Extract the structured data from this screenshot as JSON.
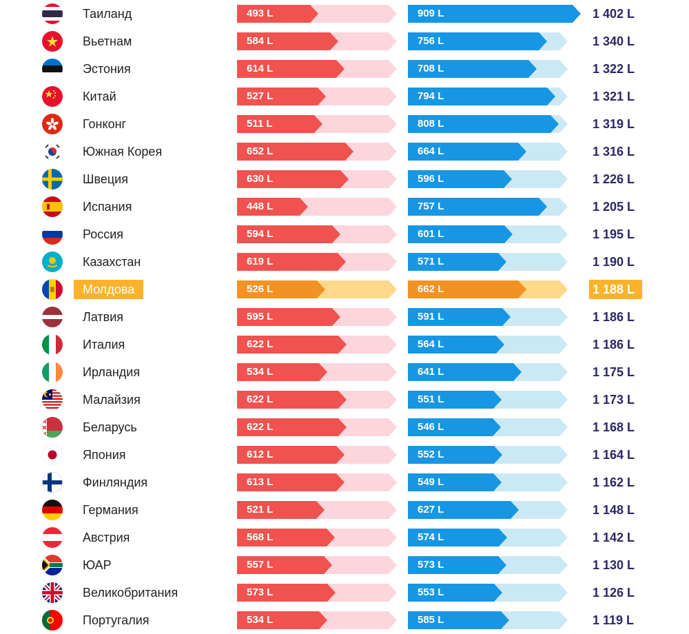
{
  "chart_data": {
    "type": "bar",
    "series": [
      {
        "colors": {
          "bar": "#f0524f",
          "track": "#fdd5dc"
        }
      },
      {
        "colors": {
          "bar": "#1796e3",
          "track": "#cbe9f4"
        }
      }
    ],
    "highlight_colors": {
      "bar": "#f29222",
      "track": "#fed88a",
      "badge": "#fcb22a"
    },
    "total_color": "#2b2669",
    "unit": "L",
    "rows": [
      {
        "country": "Таиланд",
        "flag": "thailand-flag",
        "v1": 493,
        "v1_label": "493 L",
        "v2": 909,
        "v2_label": "909 L",
        "total": 1402,
        "total_label": "1 402 L"
      },
      {
        "country": "Вьетнам",
        "flag": "vietnam-flag",
        "v1": 584,
        "v1_label": "584 L",
        "v2": 756,
        "v2_label": "756 L",
        "total": 1340,
        "total_label": "1 340 L"
      },
      {
        "country": "Эстония",
        "flag": "estonia-flag",
        "v1": 614,
        "v1_label": "614 L",
        "v2": 708,
        "v2_label": "708 L",
        "total": 1322,
        "total_label": "1 322 L"
      },
      {
        "country": "Китай",
        "flag": "china-flag",
        "v1": 527,
        "v1_label": "527 L",
        "v2": 794,
        "v2_label": "794 L",
        "total": 1321,
        "total_label": "1 321 L"
      },
      {
        "country": "Гонконг",
        "flag": "hong-kong-flag",
        "v1": 511,
        "v1_label": "511 L",
        "v2": 808,
        "v2_label": "808 L",
        "total": 1319,
        "total_label": "1 319 L"
      },
      {
        "country": "Южная Корея",
        "flag": "south-korea-flag",
        "v1": 652,
        "v1_label": "652 L",
        "v2": 664,
        "v2_label": "664 L",
        "total": 1316,
        "total_label": "1 316 L"
      },
      {
        "country": "Швеция",
        "flag": "sweden-flag",
        "v1": 630,
        "v1_label": "630 L",
        "v2": 596,
        "v2_label": "596 L",
        "total": 1226,
        "total_label": "1 226 L"
      },
      {
        "country": "Испания",
        "flag": "spain-flag",
        "v1": 448,
        "v1_label": "448 L",
        "v2": 757,
        "v2_label": "757 L",
        "total": 1205,
        "total_label": "1 205 L"
      },
      {
        "country": "Россия",
        "flag": "russia-flag",
        "v1": 594,
        "v1_label": "594 L",
        "v2": 601,
        "v2_label": "601 L",
        "total": 1195,
        "total_label": "1 195 L"
      },
      {
        "country": "Казахстан",
        "flag": "kazakhstan-flag",
        "v1": 619,
        "v1_label": "619 L",
        "v2": 571,
        "v2_label": "571 L",
        "total": 1190,
        "total_label": "1 190 L"
      },
      {
        "country": "Молдова",
        "flag": "moldova-flag",
        "v1": 526,
        "v1_label": "526 L",
        "v2": 662,
        "v2_label": "662 L",
        "total": 1188,
        "total_label": "1 188 L",
        "highlight": true
      },
      {
        "country": "Латвия",
        "flag": "latvia-flag",
        "v1": 595,
        "v1_label": "595 L",
        "v2": 591,
        "v2_label": "591 L",
        "total": 1186,
        "total_label": "1 186 L"
      },
      {
        "country": "Италия",
        "flag": "italy-flag",
        "v1": 622,
        "v1_label": "622 L",
        "v2": 564,
        "v2_label": "564 L",
        "total": 1186,
        "total_label": "1 186 L"
      },
      {
        "country": "Ирландия",
        "flag": "ireland-flag",
        "v1": 534,
        "v1_label": "534 L",
        "v2": 641,
        "v2_label": "641 L",
        "total": 1175,
        "total_label": "1 175 L"
      },
      {
        "country": "Малайзия",
        "flag": "malaysia-flag",
        "v1": 622,
        "v1_label": "622 L",
        "v2": 551,
        "v2_label": "551 L",
        "total": 1173,
        "total_label": "1 173 L"
      },
      {
        "country": "Беларусь",
        "flag": "belarus-flag",
        "v1": 622,
        "v1_label": "622 L",
        "v2": 546,
        "v2_label": "546 L",
        "total": 1168,
        "total_label": "1 168 L"
      },
      {
        "country": "Япония",
        "flag": "japan-flag",
        "v1": 612,
        "v1_label": "612 L",
        "v2": 552,
        "v2_label": "552 L",
        "total": 1164,
        "total_label": "1 164 L"
      },
      {
        "country": "Финляндия",
        "flag": "finland-flag",
        "v1": 613,
        "v1_label": "613 L",
        "v2": 549,
        "v2_label": "549 L",
        "total": 1162,
        "total_label": "1 162 L"
      },
      {
        "country": "Германия",
        "flag": "germany-flag",
        "v1": 521,
        "v1_label": "521 L",
        "v2": 627,
        "v2_label": "627 L",
        "total": 1148,
        "total_label": "1 148 L"
      },
      {
        "country": "Австрия",
        "flag": "austria-flag",
        "v1": 568,
        "v1_label": "568 L",
        "v2": 574,
        "v2_label": "574 L",
        "total": 1142,
        "total_label": "1 142 L"
      },
      {
        "country": "ЮАР",
        "flag": "south-africa-flag",
        "v1": 557,
        "v1_label": "557 L",
        "v2": 573,
        "v2_label": "573 L",
        "total": 1130,
        "total_label": "1 130 L"
      },
      {
        "country": "Великобритания",
        "flag": "united-kingdom-flag",
        "v1": 573,
        "v1_label": "573 L",
        "v2": 553,
        "v2_label": "553 L",
        "total": 1126,
        "total_label": "1 126 L"
      },
      {
        "country": "Португалия",
        "flag": "portugal-flag",
        "v1": 534,
        "v1_label": "534 L",
        "v2": 585,
        "v2_label": "585 L",
        "total": 1119,
        "total_label": "1 119 L"
      }
    ]
  }
}
